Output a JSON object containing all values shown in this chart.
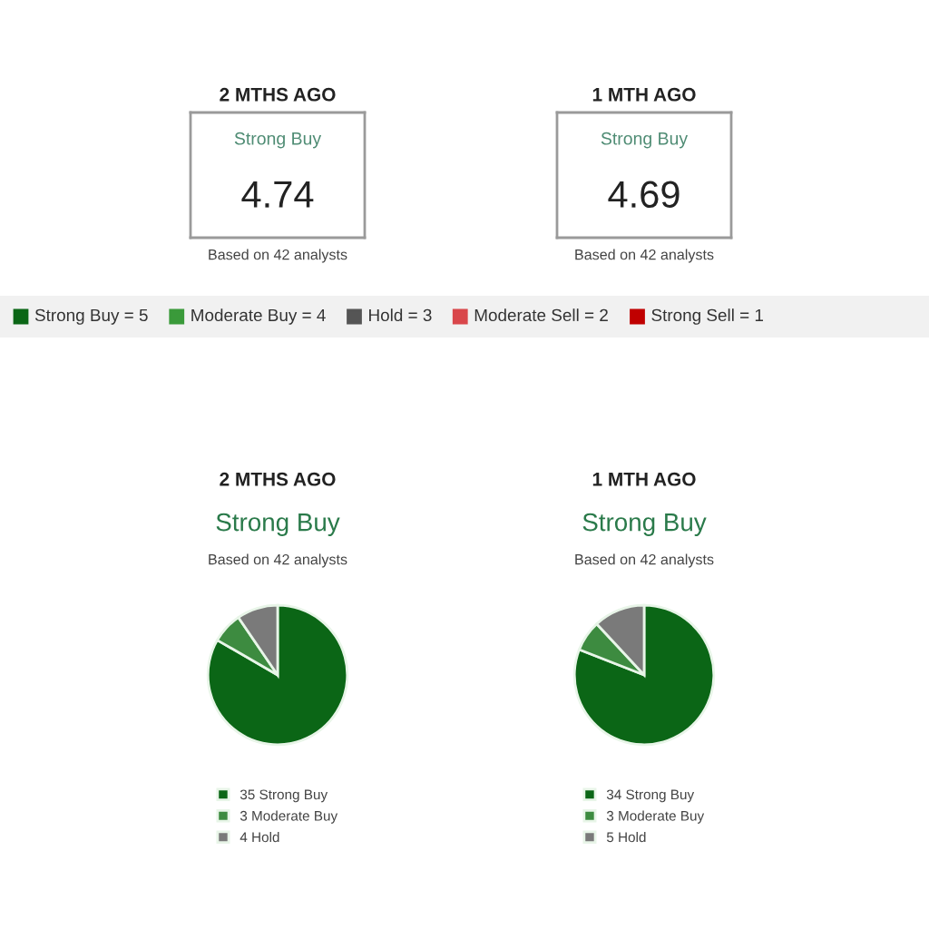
{
  "chart_data": [
    {
      "type": "other",
      "title": "2 MTHS AGO",
      "subtitle": "Strong Buy",
      "annotations": [
        "4.74",
        "Based on 42 analysts"
      ]
    },
    {
      "type": "other",
      "title": "1 MTH AGO",
      "subtitle": "Strong Buy",
      "annotations": [
        "4.69",
        "Based on 42 analysts"
      ]
    },
    {
      "type": "other",
      "categories": [
        "Strong Buy = 5",
        "Moderate Buy = 4",
        "Hold = 3",
        "Moderate Sell = 2",
        "Strong Sell = 1"
      ],
      "colors": [
        "#0b6616",
        "#3a9a3a",
        "#555555",
        "#d9474b",
        "#c00000"
      ]
    },
    {
      "type": "pie",
      "title": "2 MTHS AGO",
      "subtitle": "Strong Buy",
      "annotations": [
        "Based on 42 analysts"
      ],
      "categories": [
        "35 Strong Buy",
        "3 Moderate Buy",
        "4 Hold"
      ],
      "values": [
        35,
        3,
        4
      ],
      "colors": [
        "#0b6616",
        "#3d8b40",
        "#7a7a7a"
      ],
      "legend": "bottom"
    },
    {
      "type": "pie",
      "title": "1 MTH AGO",
      "subtitle": "Strong Buy",
      "annotations": [
        "Based on 42 analysts"
      ],
      "categories": [
        "34 Strong Buy",
        "3 Moderate Buy",
        "5 Hold"
      ],
      "values": [
        34,
        3,
        5
      ],
      "colors": [
        "#0b6616",
        "#3d8b40",
        "#7a7a7a"
      ],
      "legend": "bottom"
    }
  ]
}
